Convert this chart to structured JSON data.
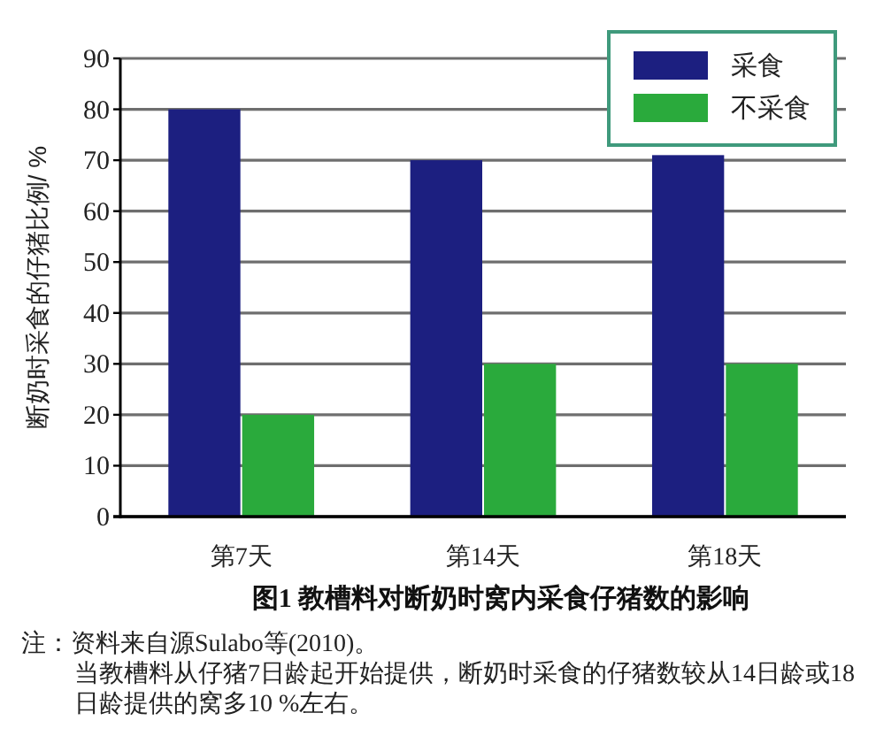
{
  "chart_data": {
    "type": "bar",
    "title": "图1 教槽料对断奶时窝内采食仔猪数的影响",
    "ylabel": "断奶时采食的仔猪比例/ %",
    "categories": [
      "第7天",
      "第14天",
      "第18天"
    ],
    "series": [
      {
        "name": "采食",
        "color": "#1c1f80",
        "values": [
          80,
          70,
          71
        ]
      },
      {
        "name": "不采食",
        "color": "#2aaa3c",
        "values": [
          20,
          30,
          30
        ]
      }
    ],
    "ylim": [
      0,
      90
    ],
    "yticks": [
      0,
      10,
      20,
      30,
      40,
      50,
      60,
      70,
      80,
      90
    ],
    "grid": "y",
    "legend": "top right",
    "annotations": [
      "注：资料来自源Sulabo等(2010)。",
      "当教槽料从仔猪7日龄起开始提供，断奶时采食的仔猪数较从14日龄或18日龄提供的窝多10 %左右。"
    ]
  }
}
